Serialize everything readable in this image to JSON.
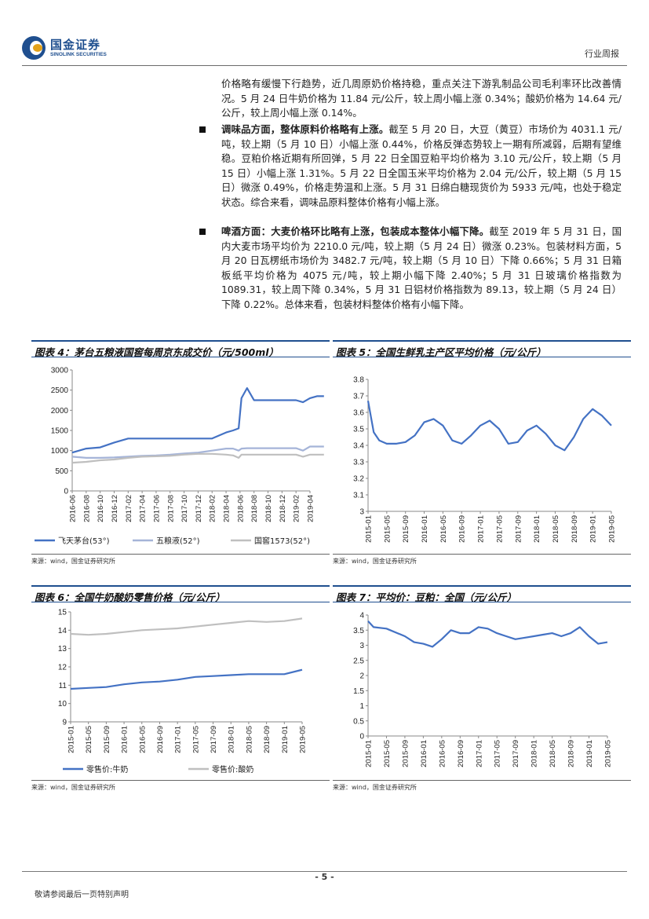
{
  "header": {
    "logo_cn": "国金证券",
    "logo_en": "SINOLINK SECURITIES",
    "doc_type": "行业周报"
  },
  "paragraphs": {
    "p1": "价格略有缓慢下行趋势，近几周原奶价格持稳，重点关注下游乳制品公司毛利率环比改善情况。5 月 24 日牛奶价格为 11.84 元/公斤，较上周小幅上涨 0.34%；酸奶价格为 14.64 元/公斤，较上周小幅上涨 0.14%。",
    "p2_bold": "调味品方面，整体原料价格略有上涨。",
    "p2_rest": "截至 5 月 20 日，大豆（黄豆）市场价为 4031.1 元/吨，较上期（5 月 10 日）小幅上涨 0.44%，价格反弹态势较上一期有所减弱，后期有望维稳。豆粕价格近期有所回弹，5 月 22 日全国豆粕平均价格为 3.10 元/公斤，较上期（5 月 15 日）小幅上涨 1.31%。5 月 22 日全国玉米平均价格为 2.04 元/公斤，较上期（5 月 15 日）微涨 0.49%，价格走势温和上涨。5 月 31 日绵白糖现货价为 5933 元/吨，也处于稳定状态。综合来看，调味品原料整体价格有小幅上涨。",
    "p3_bold": "啤酒方面：大麦价格环比略有上涨，包装成本整体小幅下降。",
    "p3_rest": "截至 2019 年 5 月 31 日，国内大麦市场平均价为 2210.0 元/吨，较上期（5 月 24 日）微涨 0.23%。包装材料方面，5 月 20 日瓦楞纸市场价为 3482.7 元/吨，较上期（5 月 10 日）下降 0.66%；5 月 31 日箱板纸平均价格为 4075 元/吨，较上期小幅下降 2.40%；5 月 31 日玻璃价格指数为 1089.31，较上周下降 0.34%，5 月 31 日铝材价格指数为 89.13，较上期（5 月 24 日）下降 0.22%。总体来看，包装材料整体价格有小幅下降。"
  },
  "figures": {
    "f4": {
      "title": "图表 4：茅台五粮液国窖每周京东成交价（元/500ml）",
      "source": "来源：wind，国金证券研究所"
    },
    "f5": {
      "title": "图表 5：全国生鲜乳主产区平均价格（元/公斤）",
      "source": "来源：wind，国金证券研究所"
    },
    "f6": {
      "title": "图表 6：全国牛奶酸奶零售价格（元/公斤）",
      "source": "来源：wind，国金证券研究所"
    },
    "f7": {
      "title": "图表 7：平均价：豆粕：全国（元/公斤）",
      "source": "来源：wind，国金证券研究所"
    }
  },
  "footer": {
    "page": "- 5 -",
    "disclaimer": "敬请参阅最后一页特别声明"
  },
  "chart_data": [
    {
      "type": "line",
      "id": "f4",
      "ylim": [
        0,
        3000
      ],
      "yticks": [
        0,
        500,
        1000,
        1500,
        2000,
        2500,
        3000
      ],
      "xticks": [
        "2016-06",
        "2016-08",
        "2016-10",
        "2016-12",
        "2017-02",
        "2017-04",
        "2017-06",
        "2017-08",
        "2017-10",
        "2017-12",
        "2018-02",
        "2018-04",
        "2018-06",
        "2018-08",
        "2018-10",
        "2018-12",
        "2019-02",
        "2019-04"
      ],
      "x": [
        0,
        1,
        2,
        3,
        4,
        5,
        6,
        7,
        8,
        9,
        10,
        11,
        11.5,
        11.9,
        12.1,
        12.5,
        13,
        14,
        15,
        16,
        16.5,
        17,
        17.5,
        18
      ],
      "series": [
        {
          "name": "飞天茅台(53°)",
          "color": "#4472c4",
          "values": [
            950,
            1050,
            1080,
            1200,
            1300,
            1300,
            1300,
            1300,
            1300,
            1300,
            1300,
            1450,
            1500,
            1550,
            2300,
            2550,
            2250,
            2250,
            2250,
            2250,
            2200,
            2300,
            2350,
            2350
          ]
        },
        {
          "name": "五粮液(52°)",
          "color": "#a5b4d8",
          "values": [
            850,
            820,
            820,
            830,
            850,
            870,
            880,
            900,
            930,
            950,
            1000,
            1050,
            1050,
            1000,
            1050,
            1060,
            1060,
            1060,
            1060,
            1060,
            1000,
            1100,
            1100,
            1100
          ]
        },
        {
          "name": "国窖1573(52°)",
          "color": "#bfbfbf",
          "values": [
            700,
            720,
            760,
            780,
            820,
            850,
            860,
            870,
            900,
            920,
            920,
            900,
            880,
            820,
            900,
            900,
            900,
            900,
            900,
            900,
            850,
            900,
            900,
            900
          ]
        }
      ]
    },
    {
      "type": "line",
      "id": "f5",
      "ylim": [
        3,
        3.8
      ],
      "yticks": [
        3,
        3.1,
        3.2,
        3.3,
        3.4,
        3.5,
        3.6,
        3.7,
        3.8
      ],
      "xticks": [
        "2015-01",
        "2015-05",
        "2015-09",
        "2016-01",
        "2016-05",
        "2016-09",
        "2017-01",
        "2017-05",
        "2017-09",
        "2018-01",
        "2018-05",
        "2018-09",
        "2019-01",
        "2019-05"
      ],
      "x": [
        0,
        0.3,
        0.6,
        1,
        1.5,
        2,
        2.5,
        3,
        3.5,
        4,
        4.5,
        5,
        5.5,
        6,
        6.5,
        7,
        7.5,
        8,
        8.5,
        9,
        9.5,
        10,
        10.5,
        11,
        11.5,
        12,
        12.5,
        13
      ],
      "series": [
        {
          "name": "",
          "color": "#4472c4",
          "values": [
            3.67,
            3.48,
            3.43,
            3.41,
            3.41,
            3.42,
            3.46,
            3.54,
            3.56,
            3.52,
            3.43,
            3.41,
            3.46,
            3.52,
            3.55,
            3.5,
            3.41,
            3.42,
            3.49,
            3.52,
            3.47,
            3.4,
            3.37,
            3.45,
            3.56,
            3.62,
            3.58,
            3.52
          ]
        }
      ]
    },
    {
      "type": "line",
      "id": "f6",
      "ylim": [
        9,
        15
      ],
      "yticks": [
        9,
        10,
        11,
        12,
        13,
        14,
        15
      ],
      "xticks": [
        "2015-01",
        "2015-05",
        "2015-09",
        "2016-01",
        "2016-05",
        "2016-09",
        "2017-01",
        "2017-05",
        "2017-09",
        "2018-01",
        "2018-05",
        "2018-09",
        "2019-01",
        "2019-05"
      ],
      "x": [
        0,
        1,
        2,
        3,
        4,
        5,
        6,
        7,
        8,
        9,
        10,
        11,
        12,
        13
      ],
      "series": [
        {
          "name": "零售价:牛奶",
          "color": "#4472c4",
          "values": [
            10.8,
            10.85,
            10.9,
            11.05,
            11.15,
            11.2,
            11.3,
            11.45,
            11.5,
            11.55,
            11.6,
            11.6,
            11.6,
            11.84
          ]
        },
        {
          "name": "零售价:酸奶",
          "color": "#bfbfbf",
          "values": [
            13.8,
            13.75,
            13.8,
            13.9,
            14.0,
            14.05,
            14.1,
            14.2,
            14.3,
            14.4,
            14.5,
            14.45,
            14.5,
            14.64
          ]
        }
      ]
    },
    {
      "type": "line",
      "id": "f7",
      "ylim": [
        0,
        4
      ],
      "yticks": [
        0,
        0.5,
        1,
        1.5,
        2,
        2.5,
        3,
        3.5,
        4
      ],
      "xticks": [
        "2015-01",
        "2015-05",
        "2015-09",
        "2016-01",
        "2016-05",
        "2016-09",
        "2017-01",
        "2017-05",
        "2017-09",
        "2018-01",
        "2018-05",
        "2018-09",
        "2019-01",
        "2019-05"
      ],
      "x": [
        0,
        0.3,
        1,
        2,
        2.5,
        3,
        3.5,
        4,
        4.5,
        5,
        5.5,
        6,
        6.5,
        7,
        7.5,
        8,
        8.5,
        9,
        9.5,
        10,
        10.5,
        11,
        11.5,
        12,
        12.5,
        13
      ],
      "series": [
        {
          "name": "",
          "color": "#4472c4",
          "values": [
            3.8,
            3.6,
            3.55,
            3.3,
            3.1,
            3.05,
            2.95,
            3.2,
            3.5,
            3.4,
            3.4,
            3.6,
            3.55,
            3.4,
            3.3,
            3.2,
            3.25,
            3.3,
            3.35,
            3.4,
            3.3,
            3.4,
            3.6,
            3.3,
            3.05,
            3.1
          ]
        }
      ]
    }
  ]
}
